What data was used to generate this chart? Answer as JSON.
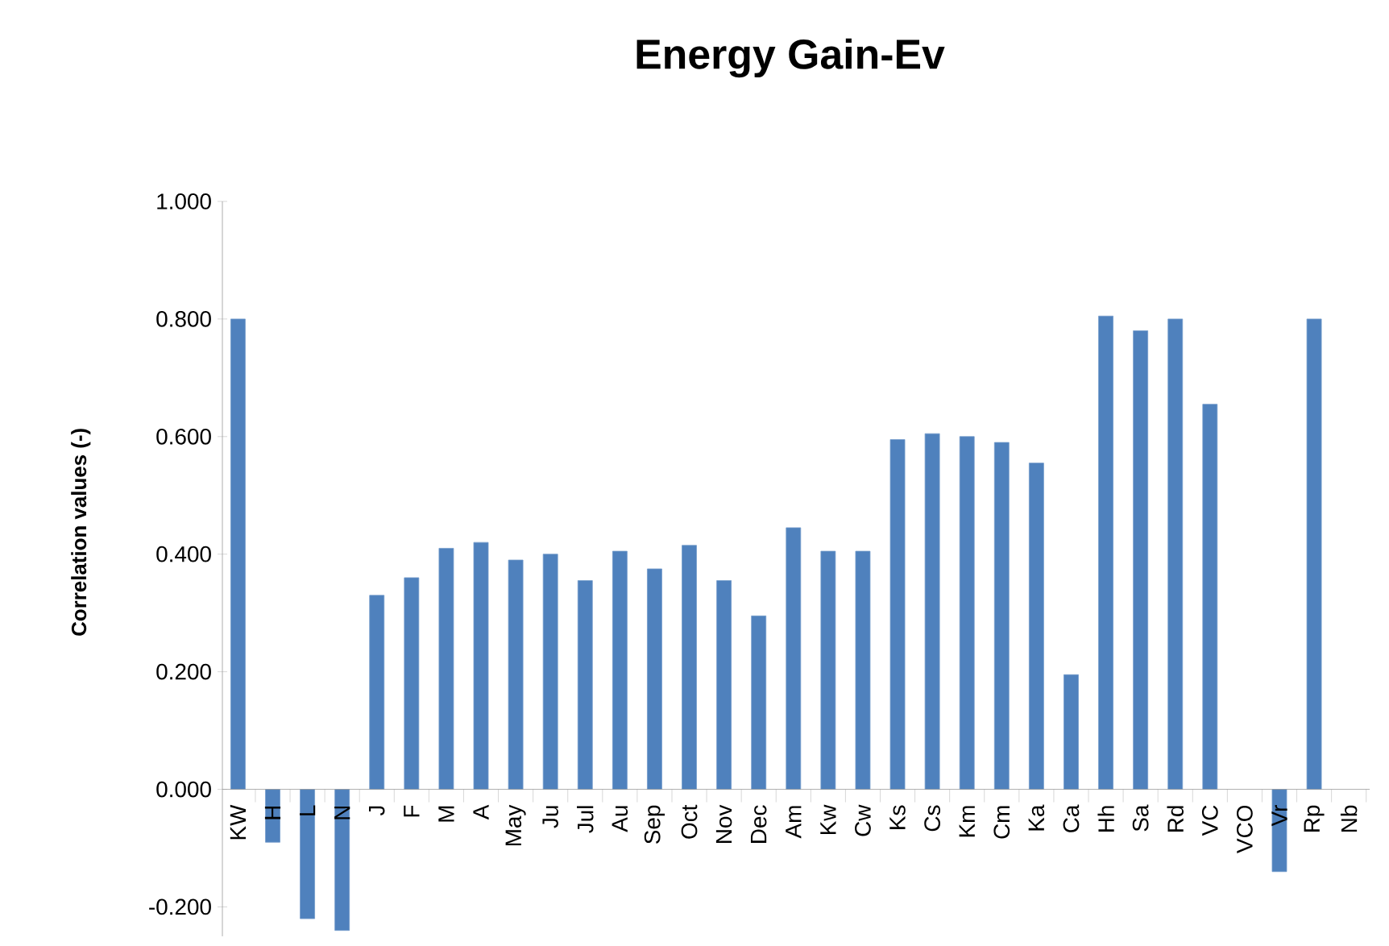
{
  "chart_data": {
    "type": "bar",
    "title": "Energy Gain-Ev",
    "ylabel": "Correlation values  (-)",
    "categories": [
      "KW",
      "H",
      "L",
      "N",
      "J",
      "F",
      "M",
      "A",
      "May",
      "Ju",
      "Jul",
      "Au",
      "Sep",
      "Oct",
      "Nov",
      "Dec",
      "Am",
      "Kw",
      "Cw",
      "Ks",
      "Cs",
      "Km",
      "Cm",
      "Ka",
      "Ca",
      "Hh",
      "Sa",
      "Rd",
      "VC",
      "VCO",
      "Vr",
      "Rp",
      "Nb"
    ],
    "values": [
      0.8,
      -0.09,
      -0.22,
      -0.24,
      0.33,
      0.36,
      0.41,
      0.42,
      0.39,
      0.4,
      0.355,
      0.405,
      0.375,
      0.415,
      0.355,
      0.295,
      0.445,
      0.405,
      0.405,
      0.595,
      0.605,
      0.6,
      0.59,
      0.555,
      0.195,
      0.805,
      0.78,
      0.8,
      0.655,
      null,
      -0.14,
      0.8,
      null
    ],
    "color": "#4f81bd",
    "ylim": [
      -0.25,
      1.0
    ],
    "yticks": [
      {
        "value": -0.2,
        "label": "-0.200"
      },
      {
        "value": 0,
        "label": "0.000"
      },
      {
        "value": 0.2,
        "label": "0.200"
      },
      {
        "value": 0.4,
        "label": "0.400"
      },
      {
        "value": 0.6,
        "label": "0.600"
      },
      {
        "value": 0.8,
        "label": "0.800"
      },
      {
        "value": 1.0,
        "label": "1.000"
      }
    ],
    "grid": false
  }
}
